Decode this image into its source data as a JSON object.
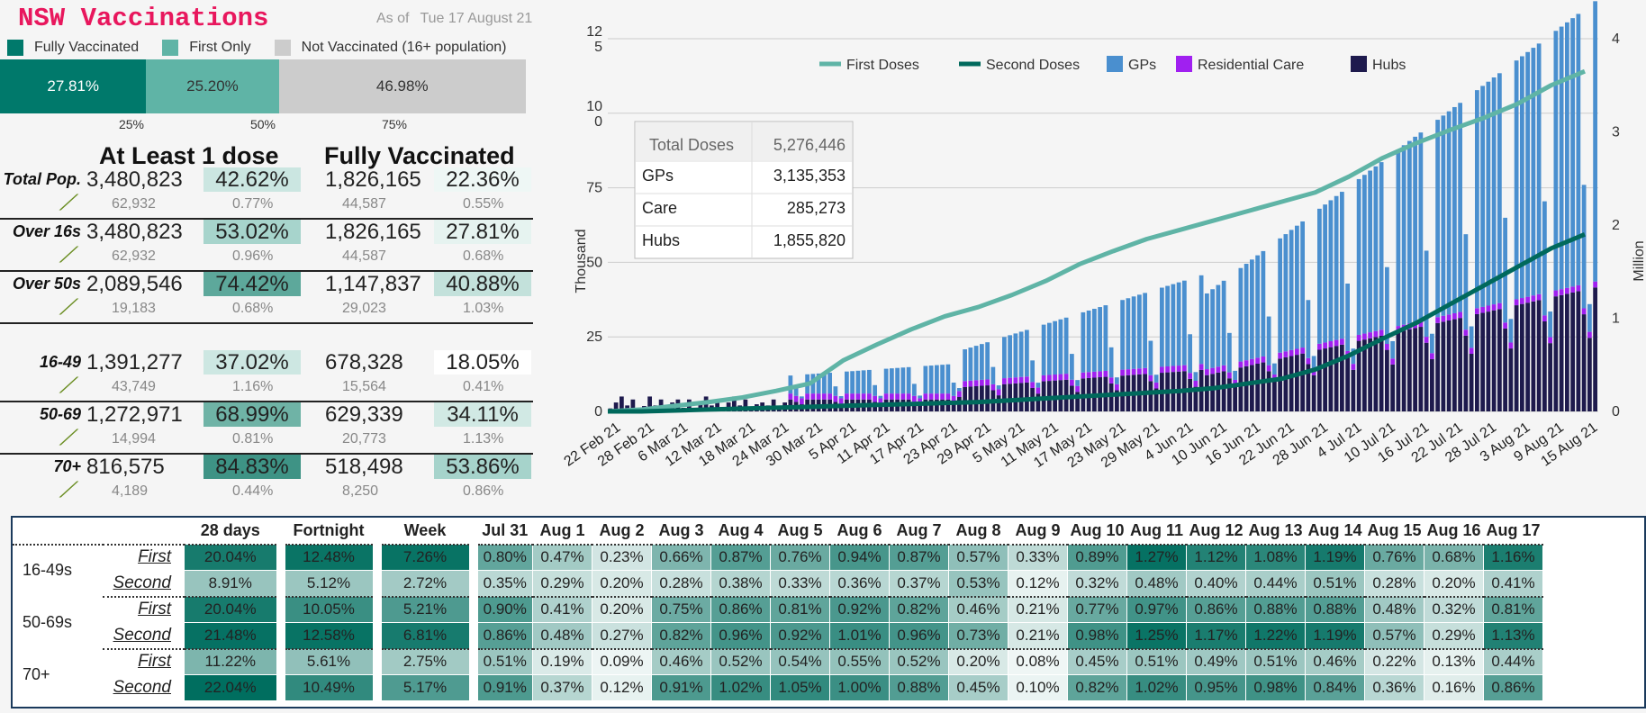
{
  "header": {
    "title": "NSW Vaccinations",
    "asof_label": "As of",
    "asof_date": "Tue 17 August 21"
  },
  "legend": [
    {
      "label": "Fully Vaccinated",
      "color": "#00796b"
    },
    {
      "label": "First Only",
      "color": "#5fb4a6"
    },
    {
      "label": "Not Vaccinated (16+ population)",
      "color": "#cccccc"
    }
  ],
  "progress": [
    {
      "label": "27.81%",
      "value": 27.81,
      "color": "#00796b",
      "text_color": "#ffffff"
    },
    {
      "label": "25.20%",
      "value": 25.2,
      "color": "#5fb4a6",
      "text_color": "#333333"
    },
    {
      "label": "46.98%",
      "value": 46.98,
      "color": "#cccccc",
      "text_color": "#333333"
    }
  ],
  "ticks": [
    {
      "label": "25%",
      "value": 25
    },
    {
      "label": "50%",
      "value": 50
    },
    {
      "label": "75%",
      "value": 75
    }
  ],
  "summary_headers": {
    "first": "At Least 1 dose",
    "full": "Fully Vaccinated"
  },
  "summary_rows": [
    {
      "label": "Total Pop.",
      "first": "3,480,823",
      "first_pct": "42.62%",
      "full": "1,826,165",
      "full_pct": "22.36%",
      "d_first": "62,932",
      "d_first_pct": "0.77%",
      "d_full": "44,587",
      "d_full_pct": "0.55%",
      "c1": "#cbe6e1",
      "c2": "#eef7f5"
    },
    {
      "label": "Over 16s",
      "first": "3,480,823",
      "first_pct": "53.02%",
      "full": "1,826,165",
      "full_pct": "27.81%",
      "d_first": "62,932",
      "d_first_pct": "0.96%",
      "d_full": "44,587",
      "d_full_pct": "0.68%",
      "c1": "#a7d4cc",
      "c2": "#e6f3f0"
    },
    {
      "label": "Over 50s",
      "first": "2,089,546",
      "first_pct": "74.42%",
      "full": "1,147,837",
      "full_pct": "40.88%",
      "d_first": "19,183",
      "d_first_pct": "0.68%",
      "d_full": "29,023",
      "d_full_pct": "1.03%",
      "c1": "#5da89b",
      "c2": "#c3e1db"
    },
    {
      "label": "16-49",
      "first": "1,391,277",
      "first_pct": "37.02%",
      "full": "678,328",
      "full_pct": "18.05%",
      "d_first": "43,749",
      "d_first_pct": "1.16%",
      "d_full": "15,564",
      "d_full_pct": "0.41%",
      "c1": "#cde7e2",
      "c2": "#ffffff"
    },
    {
      "label": "50-69",
      "first": "1,272,971",
      "first_pct": "68.99%",
      "full": "629,339",
      "full_pct": "34.11%",
      "d_first": "14,994",
      "d_first_pct": "0.81%",
      "d_full": "20,773",
      "d_full_pct": "1.13%",
      "c1": "#6fb3a6",
      "c2": "#d1e9e4"
    },
    {
      "label": "70+",
      "first": "816,575",
      "first_pct": "84.83%",
      "full": "518,498",
      "full_pct": "53.86%",
      "d_first": "4,189",
      "d_first_pct": "0.44%",
      "d_full": "8,250",
      "d_full_pct": "0.86%",
      "c1": "#3e9385",
      "c2": "#a6d3cb"
    }
  ],
  "chart_data": {
    "type": "bar",
    "legend": [
      {
        "name": "First Doses",
        "color": "#5fb4a6",
        "kind": "line"
      },
      {
        "name": "Second Doses",
        "color": "#00695c",
        "kind": "line"
      },
      {
        "name": "GPs",
        "color": "#4a8fcf",
        "kind": "bar"
      },
      {
        "name": "Residential Care",
        "color": "#a020f0",
        "kind": "bar"
      },
      {
        "name": "Hubs",
        "color": "#1e1a4d",
        "kind": "bar"
      }
    ],
    "ylabel_left": "Thousand",
    "ylabel_right": "Million",
    "y_left_ticks": [
      "0",
      "25",
      "50",
      "75",
      "10\n0",
      "12\n5"
    ],
    "y_right_ticks": [
      "0",
      "1",
      "2",
      "3",
      "4"
    ],
    "ylim_left": [
      0,
      125
    ],
    "ylim_right": [
      0,
      4
    ],
    "x_labels": [
      "22 Feb 21",
      "28 Feb 21",
      "6 Mar 21",
      "12 Mar 21",
      "18 Mar 21",
      "24 Mar 21",
      "30 Mar 21",
      "5 Apr 21",
      "11 Apr 21",
      "17 Apr 21",
      "23 Apr 21",
      "29 Apr 21",
      "5 May 21",
      "11 May 21",
      "17 May 21",
      "23 May 21",
      "29 May 21",
      "4 Jun 21",
      "10 Jun 21",
      "16 Jun 21",
      "22 Jun 21",
      "28 Jun 21",
      "4 Jul 21",
      "10 Jul 21",
      "16 Jul 21",
      "22 Jul 21",
      "28 Jul 21",
      "3 Aug 21",
      "9 Aug 21",
      "15 Aug 21"
    ],
    "totals_table": [
      {
        "label": "Total Doses",
        "value": "5,276,446"
      },
      {
        "label": "GPs",
        "value": "3,135,353"
      },
      {
        "label": "Care",
        "value": "285,273"
      },
      {
        "label": "Hubs",
        "value": "1,855,820"
      }
    ],
    "first_doses_million": [
      0.0,
      0.02,
      0.06,
      0.1,
      0.15,
      0.22,
      0.3,
      0.55,
      0.72,
      0.88,
      1.02,
      1.12,
      1.25,
      1.4,
      1.58,
      1.72,
      1.85,
      1.95,
      2.05,
      2.15,
      2.25,
      2.35,
      2.52,
      2.72,
      2.88,
      3.02,
      3.15,
      3.3,
      3.5,
      3.65
    ],
    "second_doses_million": [
      0.0,
      0.0,
      0.01,
      0.02,
      0.03,
      0.04,
      0.05,
      0.06,
      0.07,
      0.08,
      0.09,
      0.1,
      0.12,
      0.14,
      0.16,
      0.18,
      0.2,
      0.22,
      0.25,
      0.3,
      0.35,
      0.45,
      0.6,
      0.78,
      0.95,
      1.15,
      1.35,
      1.55,
      1.75,
      1.9
    ]
  },
  "matrix": {
    "headers": [
      "28 days",
      "Fortnight",
      "Week",
      "Jul 31",
      "Aug 1",
      "Aug 2",
      "Aug 3",
      "Aug 4",
      "Aug 5",
      "Aug 6",
      "Aug 7",
      "Aug 8",
      "Aug 9",
      "Aug 10",
      "Aug 11",
      "Aug 12",
      "Aug 13",
      "Aug 14",
      "Aug 15",
      "Aug 16",
      "Aug 17"
    ],
    "groups": [
      {
        "name": "16-49s",
        "rows": [
          {
            "label": "First",
            "values": [
              "20.04%",
              "12.48%",
              "7.26%",
              "0.80%",
              "0.47%",
              "0.23%",
              "0.66%",
              "0.87%",
              "0.76%",
              "0.94%",
              "0.87%",
              "0.57%",
              "0.33%",
              "0.89%",
              "1.27%",
              "1.12%",
              "1.08%",
              "1.19%",
              "0.76%",
              "0.68%",
              "1.16%"
            ]
          },
          {
            "label": "Second",
            "values": [
              "8.91%",
              "5.12%",
              "2.72%",
              "0.35%",
              "0.29%",
              "0.20%",
              "0.28%",
              "0.38%",
              "0.33%",
              "0.36%",
              "0.37%",
              "0.53%",
              "0.12%",
              "0.32%",
              "0.48%",
              "0.40%",
              "0.44%",
              "0.51%",
              "0.28%",
              "0.20%",
              "0.41%"
            ]
          }
        ]
      },
      {
        "name": "50-69s",
        "rows": [
          {
            "label": "First",
            "values": [
              "20.04%",
              "10.05%",
              "5.21%",
              "0.90%",
              "0.41%",
              "0.20%",
              "0.75%",
              "0.86%",
              "0.81%",
              "0.92%",
              "0.82%",
              "0.46%",
              "0.21%",
              "0.77%",
              "0.97%",
              "0.86%",
              "0.88%",
              "0.88%",
              "0.48%",
              "0.32%",
              "0.81%"
            ]
          },
          {
            "label": "Second",
            "values": [
              "21.48%",
              "12.58%",
              "6.81%",
              "0.86%",
              "0.48%",
              "0.27%",
              "0.82%",
              "0.96%",
              "0.92%",
              "1.01%",
              "0.96%",
              "0.73%",
              "0.21%",
              "0.98%",
              "1.25%",
              "1.17%",
              "1.22%",
              "1.19%",
              "0.57%",
              "0.29%",
              "1.13%"
            ]
          }
        ]
      },
      {
        "name": "70+",
        "rows": [
          {
            "label": "First",
            "values": [
              "11.22%",
              "5.61%",
              "2.75%",
              "0.51%",
              "0.19%",
              "0.09%",
              "0.46%",
              "0.52%",
              "0.54%",
              "0.55%",
              "0.52%",
              "0.20%",
              "0.08%",
              "0.45%",
              "0.51%",
              "0.49%",
              "0.51%",
              "0.46%",
              "0.22%",
              "0.13%",
              "0.44%"
            ]
          },
          {
            "label": "Second",
            "values": [
              "22.04%",
              "10.49%",
              "5.17%",
              "0.91%",
              "0.37%",
              "0.12%",
              "0.91%",
              "1.02%",
              "1.05%",
              "1.00%",
              "0.88%",
              "0.45%",
              "0.10%",
              "0.82%",
              "1.02%",
              "0.95%",
              "0.98%",
              "0.84%",
              "0.36%",
              "0.16%",
              "0.86%"
            ]
          }
        ]
      }
    ]
  }
}
